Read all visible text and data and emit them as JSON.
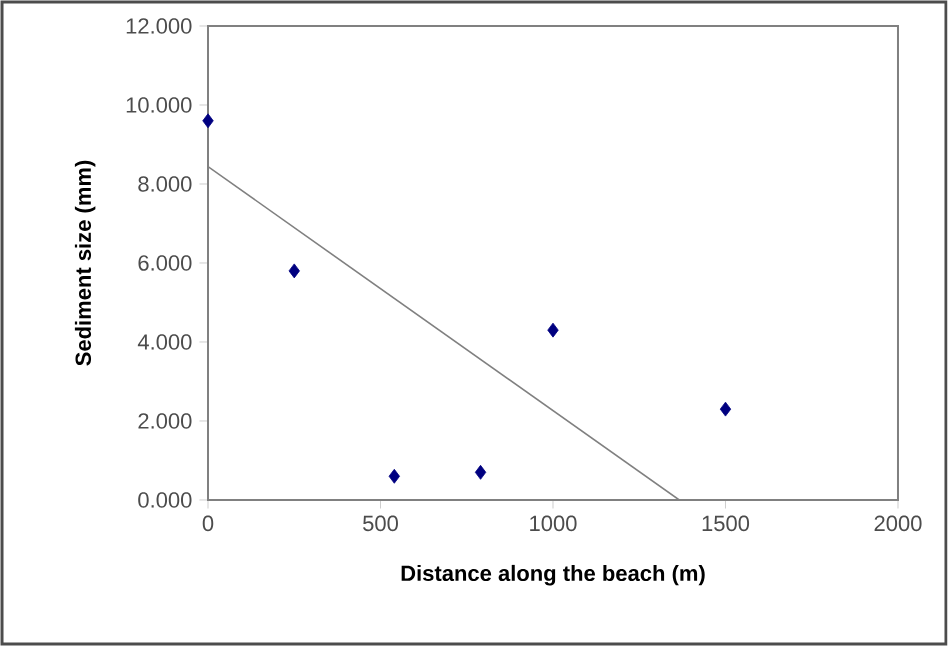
{
  "chart_data": {
    "type": "scatter",
    "xlabel": "Distance along the beach (m)",
    "ylabel": "Sediment size  (mm)",
    "xlim": [
      0,
      2000
    ],
    "ylim": [
      0,
      12
    ],
    "xticks": [
      0,
      500,
      1000,
      1500,
      2000
    ],
    "yticks": [
      {
        "value": 0,
        "label": "0.000"
      },
      {
        "value": 2,
        "label": "2.000"
      },
      {
        "value": 4,
        "label": "4.000"
      },
      {
        "value": 6,
        "label": "6.000"
      },
      {
        "value": 8,
        "label": "8.000"
      },
      {
        "value": 10,
        "label": "10.000"
      },
      {
        "value": 12,
        "label": "12.000"
      }
    ],
    "marker": "diamond",
    "series": [
      {
        "color": "#000080",
        "x": [
          0,
          250,
          540,
          790,
          1000,
          1500
        ],
        "values": [
          9.6,
          5.8,
          0.6,
          0.7,
          4.3,
          2.3
        ]
      },
      {
        "type": "line",
        "color": "#808080",
        "x": [
          0,
          1366
        ],
        "values": [
          8.44,
          0
        ],
        "marker": "none"
      }
    ]
  }
}
